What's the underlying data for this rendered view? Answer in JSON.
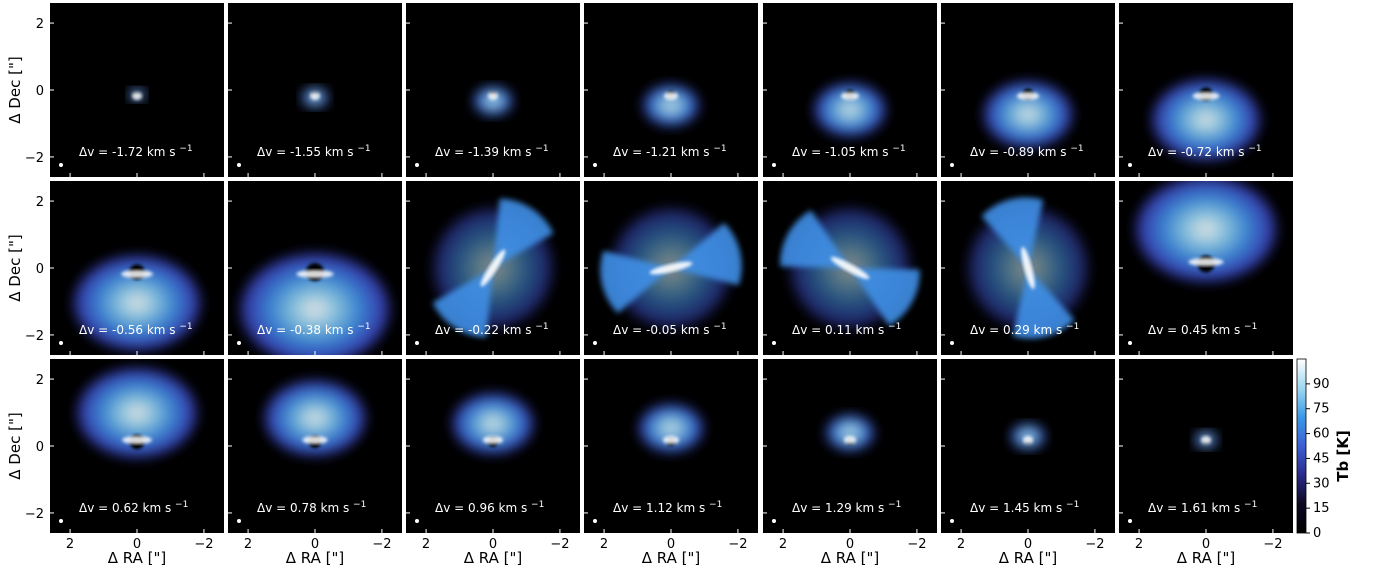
{
  "chart_data": {
    "type": "heatmap",
    "layout": {
      "rows": 3,
      "cols": 7
    },
    "xlabel": "Δ RA [\"]",
    "ylabel": "Δ Dec [\"]",
    "xlim": [
      2.6,
      -2.6
    ],
    "ylim": [
      -2.6,
      2.6
    ],
    "x_ticks": [
      2,
      0,
      -2
    ],
    "y_ticks": [
      2,
      0,
      -2
    ],
    "panel_label_prefix": "Δv = ",
    "panel_label_unit": "km s",
    "panel_label_unit_exponent": "−1",
    "velocities": [
      "-1.72",
      "-1.55",
      "-1.39",
      "-1.21",
      "-1.05",
      "-0.89",
      "-0.72",
      "-0.56",
      "-0.38",
      "-0.22",
      "-0.05",
      "0.11",
      "0.29",
      "0.45",
      "0.62",
      "0.78",
      "0.96",
      "1.12",
      "1.29",
      "1.45",
      "1.61"
    ],
    "colorbar": {
      "label": "Tb [K]",
      "range": [
        0,
        105
      ],
      "ticks": [
        0,
        15,
        30,
        45,
        60,
        75,
        90
      ],
      "colors": [
        "#000000",
        "#0d0820",
        "#2a2a8a",
        "#3d5fd4",
        "#3a9ae8",
        "#9fd8f0",
        "#ffffff"
      ]
    },
    "beam_marker": "white dot at lower-left of each panel"
  }
}
